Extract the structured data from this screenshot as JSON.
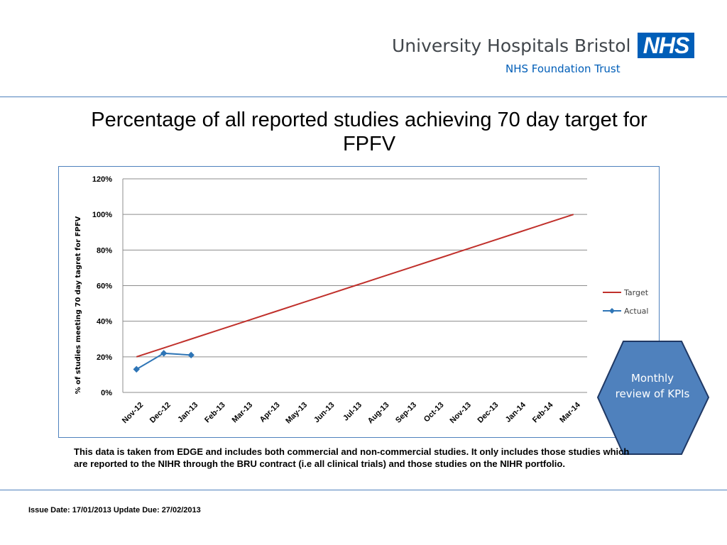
{
  "header": {
    "organisation": "University Hospitals Bristol",
    "logo_text": "NHS",
    "subtitle": "NHS Foundation Trust"
  },
  "slide_title": "Percentage of all reported studies achieving 70 day target for FPFV",
  "badge": {
    "text": "Monthly review of KPIs",
    "color": "#4f81bd"
  },
  "note": "This data is taken from EDGE and includes both commercial and non-commercial studies. It only includes those studies which are reported to the NIHR through the BRU contract (i.e all clinical trials) and those studies on the NIHR portfolio.",
  "footer": {
    "issue": "Issue Date: 17/01/2013 Update Due:  27/02/2013"
  },
  "chart_data": {
    "type": "line",
    "title": "",
    "xlabel": "",
    "ylabel": "% of studies meeting 70 day tagret for FPFV",
    "categories": [
      "Nov-12",
      "Dec-12",
      "Jan-13",
      "Feb-13",
      "Mar-13",
      "Apr-13",
      "May-13",
      "Jun-13",
      "Jul-13",
      "Aug-13",
      "Sep-13",
      "Oct-13",
      "Nov-13",
      "Dec-13",
      "Jan-14",
      "Feb-14",
      "Mar-14"
    ],
    "ylim": [
      0,
      1.2
    ],
    "yticks": [
      "0%",
      "20%",
      "40%",
      "60%",
      "80%",
      "100%",
      "120%"
    ],
    "grid": true,
    "legend_position": "right",
    "series": [
      {
        "name": "Target",
        "color": "#c0302b",
        "marker": "none",
        "values": [
          0.2,
          0.25,
          0.3,
          0.35,
          0.4,
          0.45,
          0.5,
          0.55,
          0.6,
          0.65,
          0.7,
          0.75,
          0.8,
          0.85,
          0.9,
          0.95,
          1.0
        ]
      },
      {
        "name": "Actual",
        "color": "#2e75b6",
        "marker": "diamond",
        "values": [
          0.13,
          0.22,
          0.21,
          null,
          null,
          null,
          null,
          null,
          null,
          null,
          null,
          null,
          null,
          null,
          null,
          null,
          null
        ]
      }
    ]
  }
}
